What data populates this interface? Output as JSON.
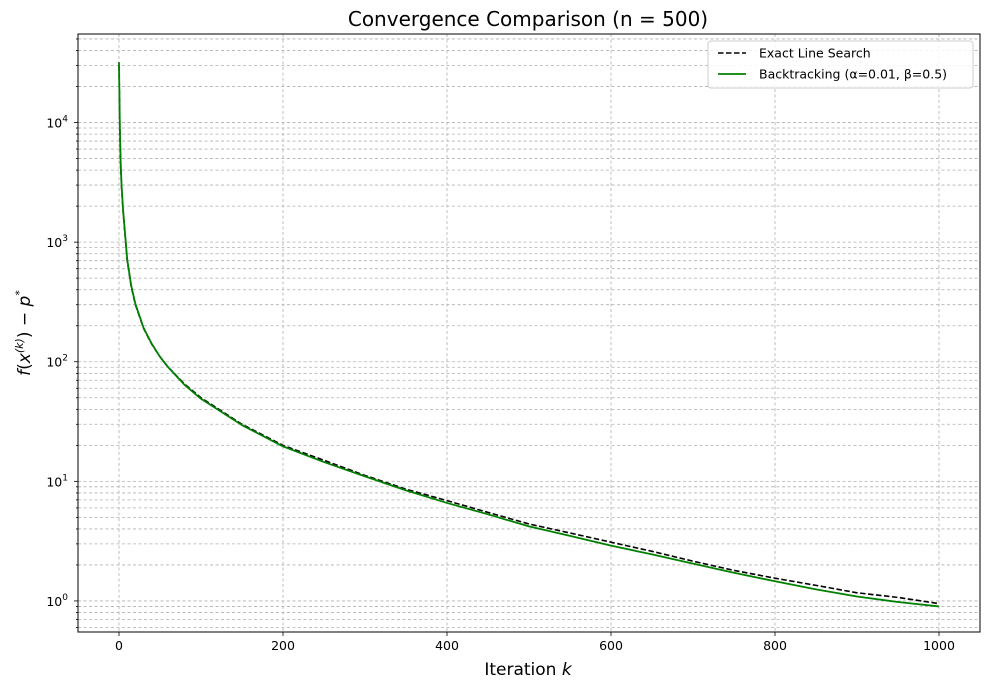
{
  "chart_data": {
    "type": "line",
    "title": "Convergence Comparison (n = 500)",
    "xlabel": "Iteration k",
    "ylabel": "f(x(k)) − p*",
    "yscale": "log",
    "xlim": [
      -50,
      1050
    ],
    "ylim": [
      0.55,
      55000
    ],
    "xticks": [
      0,
      200,
      400,
      600,
      800,
      1000
    ],
    "xtick_labels": [
      "0",
      "200",
      "400",
      "600",
      "800",
      "1000"
    ],
    "ytick_exponents": [
      0,
      1,
      2,
      3,
      4
    ],
    "grid": true,
    "grid_style": "dashed",
    "legend_position": "upper right",
    "series": [
      {
        "name": "Exact Line Search",
        "color": "#000000",
        "style": "dashed",
        "points": [
          [
            0,
            30000
          ],
          [
            1,
            9000
          ],
          [
            2,
            4500
          ],
          [
            3,
            3000
          ],
          [
            5,
            1800
          ],
          [
            10,
            700
          ],
          [
            15,
            420
          ],
          [
            20,
            300
          ],
          [
            30,
            190
          ],
          [
            40,
            140
          ],
          [
            50,
            110
          ],
          [
            60,
            90
          ],
          [
            80,
            65
          ],
          [
            100,
            50
          ],
          [
            150,
            30
          ],
          [
            200,
            20
          ],
          [
            250,
            15
          ],
          [
            300,
            11.2
          ],
          [
            350,
            8.6
          ],
          [
            400,
            6.9
          ],
          [
            450,
            5.5
          ],
          [
            500,
            4.4
          ],
          [
            550,
            3.7
          ],
          [
            600,
            3.1
          ],
          [
            650,
            2.6
          ],
          [
            700,
            2.15
          ],
          [
            750,
            1.8
          ],
          [
            800,
            1.55
          ],
          [
            850,
            1.35
          ],
          [
            900,
            1.17
          ],
          [
            950,
            1.07
          ],
          [
            1000,
            0.95
          ]
        ]
      },
      {
        "name": "Backtracking (α=0.01, β=0.5)",
        "color": "#008000",
        "style": "solid",
        "points": [
          [
            0,
            32000
          ],
          [
            1,
            9500
          ],
          [
            2,
            4800
          ],
          [
            3,
            3100
          ],
          [
            5,
            1850
          ],
          [
            10,
            720
          ],
          [
            15,
            430
          ],
          [
            20,
            305
          ],
          [
            30,
            192
          ],
          [
            40,
            141
          ],
          [
            50,
            110
          ],
          [
            60,
            90
          ],
          [
            80,
            64
          ],
          [
            100,
            49
          ],
          [
            150,
            29.5
          ],
          [
            200,
            19.6
          ],
          [
            250,
            14.5
          ],
          [
            300,
            11
          ],
          [
            350,
            8.4
          ],
          [
            400,
            6.6
          ],
          [
            450,
            5.3
          ],
          [
            500,
            4.2
          ],
          [
            550,
            3.5
          ],
          [
            600,
            2.9
          ],
          [
            650,
            2.45
          ],
          [
            700,
            2.05
          ],
          [
            750,
            1.72
          ],
          [
            800,
            1.46
          ],
          [
            850,
            1.25
          ],
          [
            900,
            1.09
          ],
          [
            950,
            0.98
          ],
          [
            1000,
            0.9
          ]
        ]
      }
    ]
  }
}
